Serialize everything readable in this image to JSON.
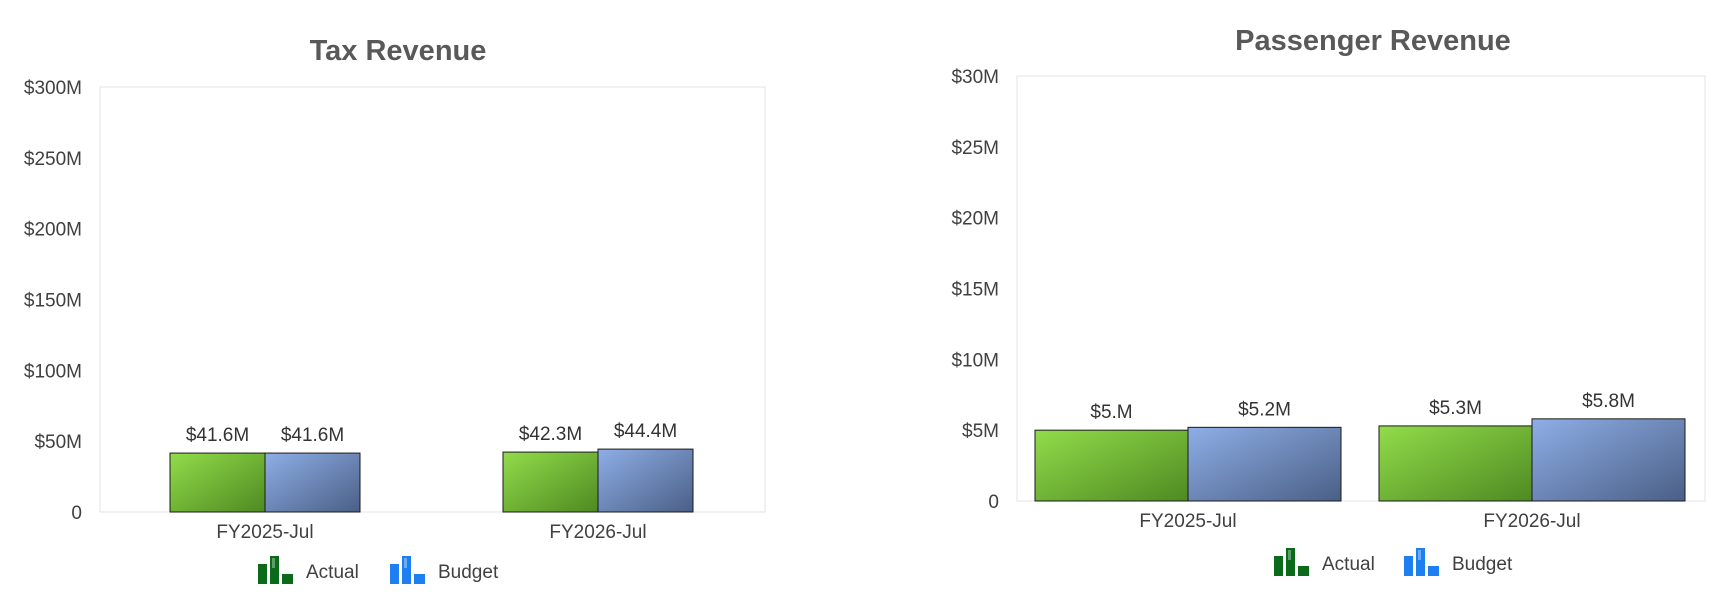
{
  "colors": {
    "actual_light": "#92dc4a",
    "actual_dark": "#4e8a22",
    "budget_light": "#8eaee6",
    "budget_dark": "#4a5f86",
    "legend_actual": "#0b6b1a",
    "legend_budget": "#1e7ff0"
  },
  "legend": {
    "actual_icon": "bar-chart-green-icon",
    "budget_icon": "bar-chart-blue-icon"
  },
  "chart_data": [
    {
      "type": "bar",
      "title": "Tax Revenue",
      "categories": [
        "FY2025-Jul",
        "FY2026-Jul"
      ],
      "series": [
        {
          "name": "Actual",
          "values": [
            41.6,
            42.3
          ],
          "labels": [
            "$41.6M",
            "$42.3M"
          ]
        },
        {
          "name": "Budget",
          "values": [
            41.6,
            44.4
          ],
          "labels": [
            "$41.6M",
            "$44.4M"
          ]
        }
      ],
      "ylim": [
        0,
        300
      ],
      "yticks": [
        0,
        50,
        100,
        150,
        200,
        250,
        300
      ],
      "ytick_labels": [
        "0",
        "$50M",
        "$100M",
        "$150M",
        "$200M",
        "$250M",
        "$300M"
      ],
      "grid": false,
      "legend_position": "bottom"
    },
    {
      "type": "bar",
      "title": "Passenger Revenue",
      "categories": [
        "FY2025-Jul",
        "FY2026-Jul"
      ],
      "series": [
        {
          "name": "Actual",
          "values": [
            5.0,
            5.3
          ],
          "labels": [
            "$5.M",
            "$5.3M"
          ]
        },
        {
          "name": "Budget",
          "values": [
            5.2,
            5.8
          ],
          "labels": [
            "$5.2M",
            "$5.8M"
          ]
        }
      ],
      "ylim": [
        0,
        30
      ],
      "yticks": [
        0,
        5,
        10,
        15,
        20,
        25,
        30
      ],
      "ytick_labels": [
        "0",
        "$5M",
        "$10M",
        "$15M",
        "$20M",
        "$25M",
        "$30M"
      ],
      "grid": false,
      "legend_position": "bottom"
    }
  ]
}
